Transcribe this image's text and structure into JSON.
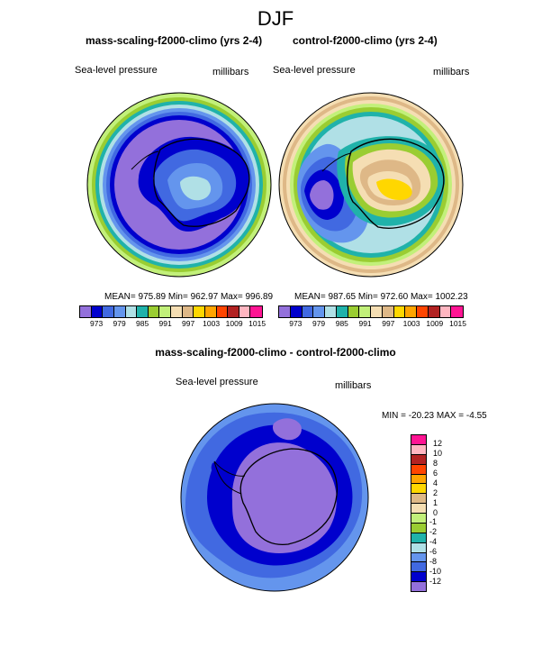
{
  "season": "DJF",
  "panels": {
    "left": {
      "title": "mass-scaling-f2000-climo (yrs 2-4)",
      "variable": "Sea-level pressure",
      "units": "millibars",
      "stats": "MEAN= 975.89  Min= 962.97  Max= 996.89"
    },
    "right": {
      "title": "control-f2000-climo (yrs 2-4)",
      "variable": "Sea-level pressure",
      "units": "millibars",
      "stats": "MEAN= 987.65  Min= 972.60  Max= 1002.23"
    },
    "diff": {
      "title": "mass-scaling-f2000-climo - control-f2000-climo",
      "variable": "Sea-level pressure",
      "units": "millibars",
      "stats": "MIN = -20.23 MAX =  -4.55"
    }
  },
  "colorbar_abs": {
    "colors": [
      "#9370db",
      "#0000cd",
      "#4169e1",
      "#6495ed",
      "#b0e0e6",
      "#20b2aa",
      "#9acd32",
      "#c2f07a",
      "#f5deb3",
      "#deb887",
      "#ffd700",
      "#ffa500",
      "#ff4500",
      "#b22222",
      "#ffb6c1",
      "#ff1493"
    ],
    "labels": [
      "973",
      "979",
      "985",
      "991",
      "997",
      "1003",
      "1009",
      "1015"
    ]
  },
  "colorbar_diff": {
    "colors": [
      "#ff1493",
      "#ffb6c1",
      "#b22222",
      "#ff4500",
      "#ffa500",
      "#ffd700",
      "#deb887",
      "#f5deb3",
      "#c2f07a",
      "#9acd32",
      "#20b2aa",
      "#b0e0e6",
      "#6495ed",
      "#4169e1",
      "#0000cd",
      "#9370db"
    ],
    "labels": [
      "12",
      "10",
      "8",
      "6",
      "4",
      "2",
      "1",
      "0",
      "-1",
      "-2",
      "-4",
      "-6",
      "-8",
      "-10",
      "-12"
    ]
  }
}
